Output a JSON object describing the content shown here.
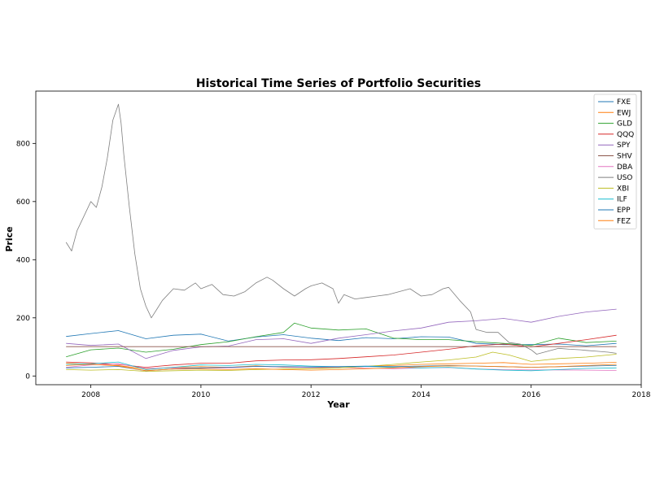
{
  "chart_data": {
    "type": "line",
    "title": "Historical Time Series of Portfolio Securities",
    "xlabel": "Year",
    "ylabel": "Price",
    "xlim": [
      2007.0,
      2018.0
    ],
    "ylim": [
      -30,
      980
    ],
    "xticks": [
      "2008",
      "2010",
      "2012",
      "2014",
      "2016",
      "2018"
    ],
    "yticks": [
      "0",
      "200",
      "400",
      "600",
      "800"
    ],
    "legend_position": "top-right",
    "grid": false,
    "series": [
      {
        "name": "FXE",
        "color": "#1f77b4",
        "x": [
          2007.55,
          2008.0,
          2008.5,
          2009.0,
          2009.5,
          2010.0,
          2010.5,
          2011.0,
          2011.5,
          2012.0,
          2012.5,
          2013.0,
          2013.5,
          2014.0,
          2014.5,
          2015.0,
          2015.5,
          2016.0,
          2016.5,
          2017.0,
          2017.55
        ],
        "y": [
          136,
          146,
          156,
          128,
          140,
          144,
          120,
          134,
          142,
          130,
          122,
          132,
          128,
          135,
          134,
          112,
          108,
          108,
          110,
          104,
          112
        ]
      },
      {
        "name": "EWJ",
        "color": "#ff7f0e",
        "x": [
          2007.55,
          2008.0,
          2008.5,
          2009.0,
          2009.5,
          2010.0,
          2010.5,
          2011.0,
          2011.5,
          2012.0,
          2012.5,
          2013.0,
          2013.5,
          2014.0,
          2014.5,
          2015.0,
          2015.5,
          2016.0,
          2016.5,
          2017.0,
          2017.55
        ],
        "y": [
          44,
          40,
          36,
          24,
          30,
          32,
          30,
          35,
          30,
          29,
          28,
          33,
          36,
          40,
          42,
          44,
          46,
          40,
          42,
          44,
          47
        ]
      },
      {
        "name": "GLD",
        "color": "#2ca02c",
        "x": [
          2007.55,
          2008.0,
          2008.5,
          2009.0,
          2009.5,
          2010.0,
          2010.5,
          2011.0,
          2011.5,
          2011.7,
          2012.0,
          2012.5,
          2013.0,
          2013.5,
          2014.0,
          2014.5,
          2015.0,
          2015.5,
          2016.0,
          2016.5,
          2017.0,
          2017.55
        ],
        "y": [
          66,
          90,
          96,
          82,
          92,
          108,
          118,
          135,
          150,
          182,
          165,
          158,
          162,
          130,
          125,
          125,
          118,
          112,
          105,
          130,
          115,
          120
        ]
      },
      {
        "name": "QQQ",
        "color": "#d62728",
        "x": [
          2007.55,
          2008.0,
          2008.5,
          2009.0,
          2009.5,
          2010.0,
          2010.5,
          2011.0,
          2011.5,
          2012.0,
          2012.5,
          2013.0,
          2013.5,
          2014.0,
          2014.5,
          2015.0,
          2015.5,
          2016.0,
          2016.5,
          2017.0,
          2017.55
        ],
        "y": [
          48,
          45,
          40,
          30,
          38,
          44,
          44,
          52,
          55,
          56,
          60,
          66,
          72,
          82,
          92,
          104,
          110,
          100,
          112,
          125,
          140
        ]
      },
      {
        "name": "SPY",
        "color": "#9467bd",
        "x": [
          2007.55,
          2008.0,
          2008.5,
          2009.0,
          2009.5,
          2010.0,
          2010.5,
          2011.0,
          2011.5,
          2012.0,
          2012.5,
          2013.0,
          2013.5,
          2014.0,
          2014.5,
          2015.0,
          2015.5,
          2016.0,
          2016.5,
          2017.0,
          2017.55
        ],
        "y": [
          112,
          105,
          110,
          60,
          88,
          100,
          103,
          125,
          128,
          112,
          130,
          142,
          155,
          165,
          185,
          190,
          198,
          185,
          205,
          220,
          230
        ]
      },
      {
        "name": "SHV",
        "color": "#8c564b",
        "x": [
          2007.55,
          2017.55
        ],
        "y": [
          101,
          101
        ]
      },
      {
        "name": "DBA",
        "color": "#e377c2",
        "x": [
          2007.55,
          2008.0,
          2008.5,
          2009.0,
          2009.5,
          2010.0,
          2010.5,
          2011.0,
          2011.5,
          2012.0,
          2012.5,
          2013.0,
          2013.5,
          2014.0,
          2014.5,
          2015.0,
          2015.5,
          2016.0,
          2016.5,
          2017.0,
          2017.55
        ],
        "y": [
          30,
          38,
          42,
          26,
          28,
          27,
          28,
          33,
          31,
          29,
          30,
          27,
          25,
          28,
          29,
          24,
          22,
          21,
          21,
          20,
          19
        ]
      },
      {
        "name": "USO",
        "color": "#7f7f7f",
        "x": [
          2007.55,
          2007.65,
          2007.75,
          2007.9,
          2008.0,
          2008.1,
          2008.2,
          2008.3,
          2008.4,
          2008.5,
          2008.55,
          2008.6,
          2008.7,
          2008.8,
          2008.9,
          2009.0,
          2009.1,
          2009.2,
          2009.3,
          2009.5,
          2009.7,
          2009.9,
          2010.0,
          2010.2,
          2010.4,
          2010.6,
          2010.8,
          2011.0,
          2011.2,
          2011.3,
          2011.5,
          2011.7,
          2011.9,
          2012.0,
          2012.2,
          2012.4,
          2012.5,
          2012.6,
          2012.8,
          2013.0,
          2013.2,
          2013.4,
          2013.6,
          2013.8,
          2014.0,
          2014.2,
          2014.4,
          2014.5,
          2014.7,
          2014.9,
          2015.0,
          2015.2,
          2015.4,
          2015.6,
          2015.8,
          2016.0,
          2016.1,
          2016.3,
          2016.5,
          2016.7,
          2016.9,
          2017.0,
          2017.2,
          2017.4,
          2017.55
        ],
        "y": [
          460,
          430,
          500,
          560,
          600,
          580,
          650,
          750,
          880,
          935,
          870,
          760,
          580,
          420,
          300,
          240,
          200,
          230,
          260,
          300,
          295,
          320,
          300,
          315,
          280,
          275,
          290,
          320,
          340,
          330,
          300,
          275,
          300,
          310,
          320,
          300,
          250,
          280,
          265,
          270,
          275,
          280,
          290,
          300,
          275,
          280,
          300,
          305,
          260,
          220,
          160,
          150,
          150,
          115,
          110,
          90,
          75,
          85,
          95,
          92,
          90,
          88,
          85,
          82,
          78
        ]
      },
      {
        "name": "XBI",
        "color": "#bcbd22",
        "x": [
          2007.55,
          2008.0,
          2008.5,
          2009.0,
          2009.5,
          2010.0,
          2010.5,
          2011.0,
          2011.5,
          2012.0,
          2012.5,
          2013.0,
          2013.5,
          2014.0,
          2014.5,
          2015.0,
          2015.3,
          2015.6,
          2016.0,
          2016.5,
          2017.0,
          2017.55
        ],
        "y": [
          22,
          20,
          22,
          16,
          18,
          20,
          19,
          22,
          24,
          25,
          28,
          33,
          40,
          48,
          55,
          65,
          82,
          72,
          50,
          60,
          65,
          75
        ]
      },
      {
        "name": "ILF",
        "color": "#17becf",
        "x": [
          2007.55,
          2008.0,
          2008.5,
          2009.0,
          2009.5,
          2010.0,
          2010.5,
          2011.0,
          2011.5,
          2012.0,
          2012.5,
          2013.0,
          2013.5,
          2014.0,
          2014.5,
          2015.0,
          2015.5,
          2016.0,
          2016.5,
          2017.0,
          2017.55
        ],
        "y": [
          40,
          42,
          48,
          22,
          30,
          38,
          36,
          40,
          38,
          34,
          32,
          33,
          30,
          28,
          30,
          24,
          20,
          18,
          22,
          26,
          28
        ]
      },
      {
        "name": "EPP",
        "color": "#1f77b4",
        "x": [
          2007.55,
          2008.0,
          2008.5,
          2009.0,
          2009.5,
          2010.0,
          2010.5,
          2011.0,
          2011.5,
          2012.0,
          2012.5,
          2013.0,
          2013.5,
          2014.0,
          2014.5,
          2015.0,
          2015.5,
          2016.0,
          2016.5,
          2017.0,
          2017.55
        ],
        "y": [
          28,
          30,
          33,
          18,
          24,
          28,
          30,
          33,
          32,
          31,
          32,
          34,
          32,
          34,
          36,
          34,
          32,
          30,
          32,
          34,
          36
        ]
      },
      {
        "name": "FEZ",
        "color": "#ff7f0e",
        "x": [
          2007.55,
          2008.0,
          2008.5,
          2009.0,
          2009.5,
          2010.0,
          2010.5,
          2011.0,
          2011.5,
          2012.0,
          2012.5,
          2013.0,
          2013.5,
          2014.0,
          2014.5,
          2015.0,
          2015.5,
          2016.0,
          2016.5,
          2017.0,
          2017.55
        ],
        "y": [
          36,
          40,
          35,
          18,
          24,
          24,
          22,
          25,
          22,
          20,
          22,
          25,
          28,
          32,
          35,
          34,
          32,
          30,
          32,
          36,
          40
        ]
      }
    ]
  }
}
